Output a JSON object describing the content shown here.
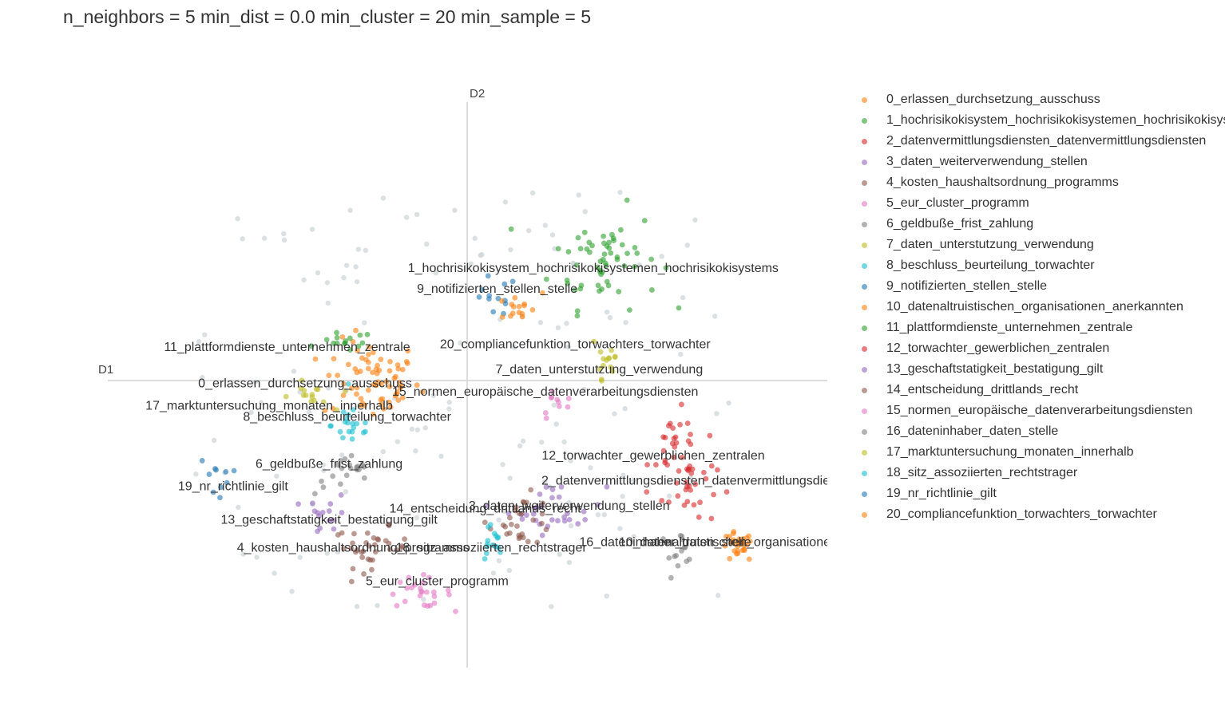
{
  "title": "n_neighbors = 5 min_dist = 0.0 min_cluster = 20 min_sample = 5",
  "chart_data": {
    "type": "scatter",
    "title": "n_neighbors = 5 min_dist = 0.0 min_cluster = 20 min_sample = 5",
    "xlabel": "D1",
    "ylabel": "D2",
    "xlim": [
      -6,
      6
    ],
    "ylim": [
      -5,
      5
    ],
    "grid": false,
    "legend_position": "right",
    "outlier_color": "#cfd6da",
    "series": [
      {
        "name": "0_erlassen_durchsetzung_ausschuss",
        "color": "#ff7f0e",
        "label_xy": [
          -2.7,
          -0.05
        ],
        "center": [
          -1.6,
          0.0
        ],
        "spread": [
          0.9,
          0.8
        ],
        "count": 70
      },
      {
        "name": "1_hochrisikokisystem_hochrisikokisystemen_hochrisikokisystems",
        "color": "#2ca02c",
        "label_xy": [
          2.1,
          2.02
        ],
        "center": [
          2.3,
          2.2
        ],
        "spread": [
          1.0,
          1.0
        ],
        "count": 60
      },
      {
        "name": "2_datenvermittlungsdiensten_datenvermittlungsdiensten",
        "color": "#d62728",
        "label_xy": [
          3.9,
          -1.8
        ],
        "center": [
          3.7,
          -1.9
        ],
        "spread": [
          0.5,
          0.8
        ],
        "count": 30
      },
      {
        "name": "3_daten_weiterverwendung_stellen",
        "color": "#9467bd",
        "label_xy": [
          1.7,
          -2.25
        ],
        "center": [
          1.5,
          -2.3
        ],
        "spread": [
          0.9,
          0.5
        ],
        "count": 30
      },
      {
        "name": "4_kosten_haushaltsordnung_programms",
        "color": "#8c564b",
        "label_xy": [
          -1.9,
          -3.0
        ],
        "center": [
          -1.6,
          -3.0
        ],
        "spread": [
          0.7,
          0.4
        ],
        "count": 35
      },
      {
        "name": "5_eur_cluster_programm",
        "color": "#e377c2",
        "label_xy": [
          -0.5,
          -3.6
        ],
        "center": [
          -0.8,
          -3.8
        ],
        "spread": [
          0.6,
          0.3
        ],
        "count": 25
      },
      {
        "name": "6_geldbuße_frist_zahlung",
        "color": "#7f7f7f",
        "label_xy": [
          -2.3,
          -1.5
        ],
        "center": [
          -2.0,
          -1.7
        ],
        "spread": [
          0.6,
          0.4
        ],
        "count": 20
      },
      {
        "name": "7_daten_unterstutzung_verwendung",
        "color": "#bcbd22",
        "label_xy": [
          2.2,
          0.2
        ],
        "center": [
          2.3,
          0.4
        ],
        "spread": [
          0.3,
          0.8
        ],
        "count": 15
      },
      {
        "name": "8_beschluss_beurteilung_torwachter",
        "color": "#17becf",
        "label_xy": [
          -2.0,
          -0.65
        ],
        "center": [
          -1.9,
          -0.8
        ],
        "spread": [
          0.4,
          0.5
        ],
        "count": 20
      },
      {
        "name": "9_notifizierten_stellen_stelle",
        "color": "#1f77b4",
        "label_xy": [
          0.5,
          1.65
        ],
        "center": [
          0.4,
          1.5
        ],
        "spread": [
          0.5,
          0.4
        ],
        "count": 12
      },
      {
        "name": "10_datenaltruistischen_organisationen_anerkannten",
        "color": "#ff7f0e",
        "label_xy": [
          5.0,
          -2.9
        ],
        "center": [
          4.5,
          -3.0
        ],
        "spread": [
          0.3,
          0.3
        ],
        "count": 30
      },
      {
        "name": "11_plattformdienste_unternehmen_zentrale",
        "color": "#2ca02c",
        "label_xy": [
          -3.0,
          0.6
        ],
        "center": [
          -2.0,
          0.7
        ],
        "spread": [
          0.5,
          0.2
        ],
        "count": 15
      },
      {
        "name": "12_torwachter_gewerblichen_zentralen",
        "color": "#d62728",
        "label_xy": [
          3.1,
          -1.35
        ],
        "center": [
          3.5,
          -1.2
        ],
        "spread": [
          0.5,
          0.7
        ],
        "count": 25
      },
      {
        "name": "13_geschaftstatigkeit_bestatigung_gilt",
        "color": "#9467bd",
        "label_xy": [
          -2.3,
          -2.5
        ],
        "center": [
          -2.3,
          -2.4
        ],
        "spread": [
          0.4,
          0.4
        ],
        "count": 15
      },
      {
        "name": "14_entscheidung_drittlands_recht",
        "color": "#8c564b",
        "label_xy": [
          0.3,
          -2.3
        ],
        "center": [
          0.9,
          -2.5
        ],
        "spread": [
          0.6,
          0.5
        ],
        "count": 30
      },
      {
        "name": "15_normen_europäische_datenverarbeitungsdiensten",
        "color": "#e377c2",
        "label_xy": [
          1.3,
          -0.2
        ],
        "center": [
          1.5,
          -0.4
        ],
        "spread": [
          0.3,
          0.3
        ],
        "count": 10
      },
      {
        "name": "16_dateninhaber_daten_stelle",
        "color": "#7f7f7f",
        "label_xy": [
          3.3,
          -2.9
        ],
        "center": [
          3.5,
          -3.0
        ],
        "spread": [
          0.4,
          0.3
        ],
        "count": 15
      },
      {
        "name": "17_marktuntersuchung_monaten_innerhalb",
        "color": "#bcbd22",
        "label_xy": [
          -3.3,
          -0.45
        ],
        "center": [
          -2.6,
          -0.3
        ],
        "spread": [
          0.4,
          0.3
        ],
        "count": 15
      },
      {
        "name": "18_sitz_assoziierten_rechtstrager",
        "color": "#17becf",
        "label_xy": [
          0.4,
          -3.0
        ],
        "center": [
          0.4,
          -2.9
        ],
        "spread": [
          0.2,
          0.4
        ],
        "count": 15
      },
      {
        "name": "19_nr_richtlinie_gilt",
        "color": "#1f77b4",
        "label_xy": [
          -3.9,
          -1.9
        ],
        "center": [
          -4.2,
          -1.7
        ],
        "spread": [
          0.3,
          0.4
        ],
        "count": 10
      },
      {
        "name": "20_compliancefunktion_torwachters_torwachter",
        "color": "#ff7f0e",
        "label_xy": [
          1.8,
          0.65
        ],
        "center": [
          0.8,
          1.3
        ],
        "spread": [
          0.5,
          0.3
        ],
        "count": 15
      }
    ]
  }
}
